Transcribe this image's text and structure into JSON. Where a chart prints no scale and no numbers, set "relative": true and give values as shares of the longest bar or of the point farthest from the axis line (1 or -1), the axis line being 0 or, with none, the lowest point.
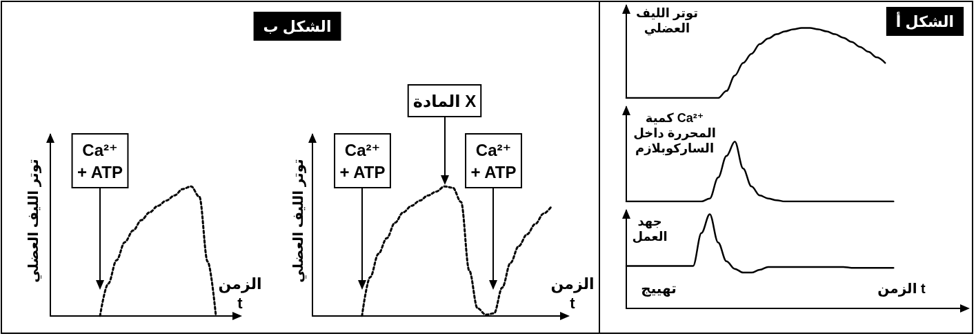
{
  "chart_data": [
    {
      "type": "line",
      "relative": true,
      "title": "الشكل أ",
      "ylabel": "توتر الليف\nالعضلي",
      "color": "#000000",
      "line_style": "solid",
      "marker": "none",
      "categories": [
        null,
        null,
        null,
        null,
        null,
        null,
        null,
        null,
        null,
        null,
        null,
        null,
        null,
        null,
        null,
        null,
        null,
        null,
        null,
        null,
        null,
        null,
        null,
        null,
        null,
        null,
        null,
        null,
        null,
        null,
        null,
        null,
        null,
        null,
        null,
        null,
        null,
        null,
        null,
        null
      ],
      "values": [
        0,
        0,
        0,
        0,
        0,
        0,
        0,
        0,
        0,
        0,
        0,
        0,
        0.1,
        0.32,
        0.5,
        0.63,
        0.77,
        0.85,
        0.91,
        0.95,
        0.98,
        1.0,
        1.0,
        0.98,
        0.95,
        0.91,
        0.86,
        0.8,
        0.73,
        0.66,
        0.58,
        0.5,
        null,
        null,
        null,
        null,
        null,
        null,
        null,
        null
      ]
    },
    {
      "type": "line",
      "relative": true,
      "ylabel": "كمية Ca²⁺\nالمحررة داخل\nالساركوبلازم",
      "color": "#000000",
      "line_style": "solid",
      "marker": "none",
      "categories": [
        null,
        null,
        null,
        null,
        null,
        null,
        null,
        null,
        null,
        null,
        null,
        null,
        null,
        null,
        null,
        null,
        null,
        null,
        null,
        null,
        null,
        null,
        null,
        null,
        null,
        null,
        null,
        null,
        null,
        null,
        null,
        null,
        null,
        null,
        null,
        null,
        null,
        null,
        null,
        null
      ],
      "values": [
        0,
        0,
        0,
        0,
        0,
        0,
        0,
        0,
        0,
        0,
        0.05,
        0.4,
        0.76,
        1.0,
        0.55,
        0.25,
        0.1,
        0.05,
        0.02,
        0,
        0,
        0,
        0,
        0,
        0,
        0,
        0,
        0,
        0,
        0,
        0,
        0,
        0,
        null,
        null,
        null,
        null,
        null,
        null,
        null
      ]
    },
    {
      "type": "line",
      "relative": true,
      "ylabel": "جهد\nالعمل",
      "xlabel": "الزمن t",
      "annotations": [
        "تهييج"
      ],
      "color": "#000000",
      "line_style": "solid",
      "marker": "none",
      "categories": [
        null,
        null,
        null,
        null,
        null,
        null,
        null,
        null,
        null,
        null,
        null,
        null,
        null,
        null,
        null,
        null,
        null,
        null,
        null,
        null,
        null,
        null,
        null,
        null,
        null,
        null,
        null,
        null,
        null,
        null,
        null,
        null,
        null,
        null,
        null,
        null,
        null,
        null,
        null,
        null
      ],
      "values": [
        0.45,
        0.45,
        0.45,
        0.45,
        0.45,
        0.45,
        0.45,
        0.45,
        0.45,
        0.8,
        1.0,
        0.7,
        0.5,
        0.42,
        0.38,
        0.38,
        0.41,
        0.44,
        0.44,
        0.44,
        0.44,
        0.44,
        0.44,
        0.44,
        0.44,
        0.44,
        0.44,
        0.43,
        0.43,
        0.43,
        0.43,
        0.43,
        0.43,
        null,
        null,
        null,
        null,
        null,
        null,
        null
      ]
    },
    {
      "type": "line",
      "relative": true,
      "title": "الشكل ب",
      "ylabel": "توتر الليف العضلي",
      "xlabel": "الزمن\nt",
      "annotations": [
        "Ca²⁺\n+ ATP",
        "المادة X",
        "Ca²⁺\n+ ATP"
      ],
      "color": "#000000",
      "line_style": "dotted",
      "marker": "none",
      "categories": [
        null,
        null,
        null,
        null,
        null,
        null,
        null,
        null,
        null,
        null,
        null,
        null,
        null,
        null,
        null,
        null,
        null,
        null,
        null,
        null,
        null,
        null,
        null,
        null,
        null,
        null,
        null,
        null,
        null,
        null
      ],
      "values": [
        null,
        null,
        null,
        null,
        null,
        null,
        0,
        0.3,
        0.48,
        0.6,
        0.72,
        0.8,
        0.85,
        0.89,
        0.93,
        0.96,
        1.0,
        0.99,
        0.88,
        0.35,
        0.06,
        0.01,
        0.02,
        0.22,
        0.41,
        0.54,
        0.63,
        0.71,
        0.79,
        0.85
      ]
    },
    {
      "type": "line",
      "relative": true,
      "ylabel": "توتر الليف العضلي",
      "xlabel": "الزمن\nt",
      "annotations": [
        "Ca²⁺\n+ ATP"
      ],
      "color": "#000000",
      "line_style": "dotted",
      "marker": "none",
      "categories": [
        null,
        null,
        null,
        null,
        null,
        null,
        null,
        null,
        null,
        null,
        null,
        null,
        null,
        null,
        null,
        null,
        null,
        null,
        null,
        null,
        null,
        null
      ],
      "values": [
        null,
        null,
        null,
        null,
        null,
        null,
        0,
        0.25,
        0.43,
        0.57,
        0.66,
        0.74,
        0.8,
        0.85,
        0.89,
        0.93,
        0.98,
        1.0,
        0.92,
        0.42,
        0,
        null
      ]
    }
  ]
}
